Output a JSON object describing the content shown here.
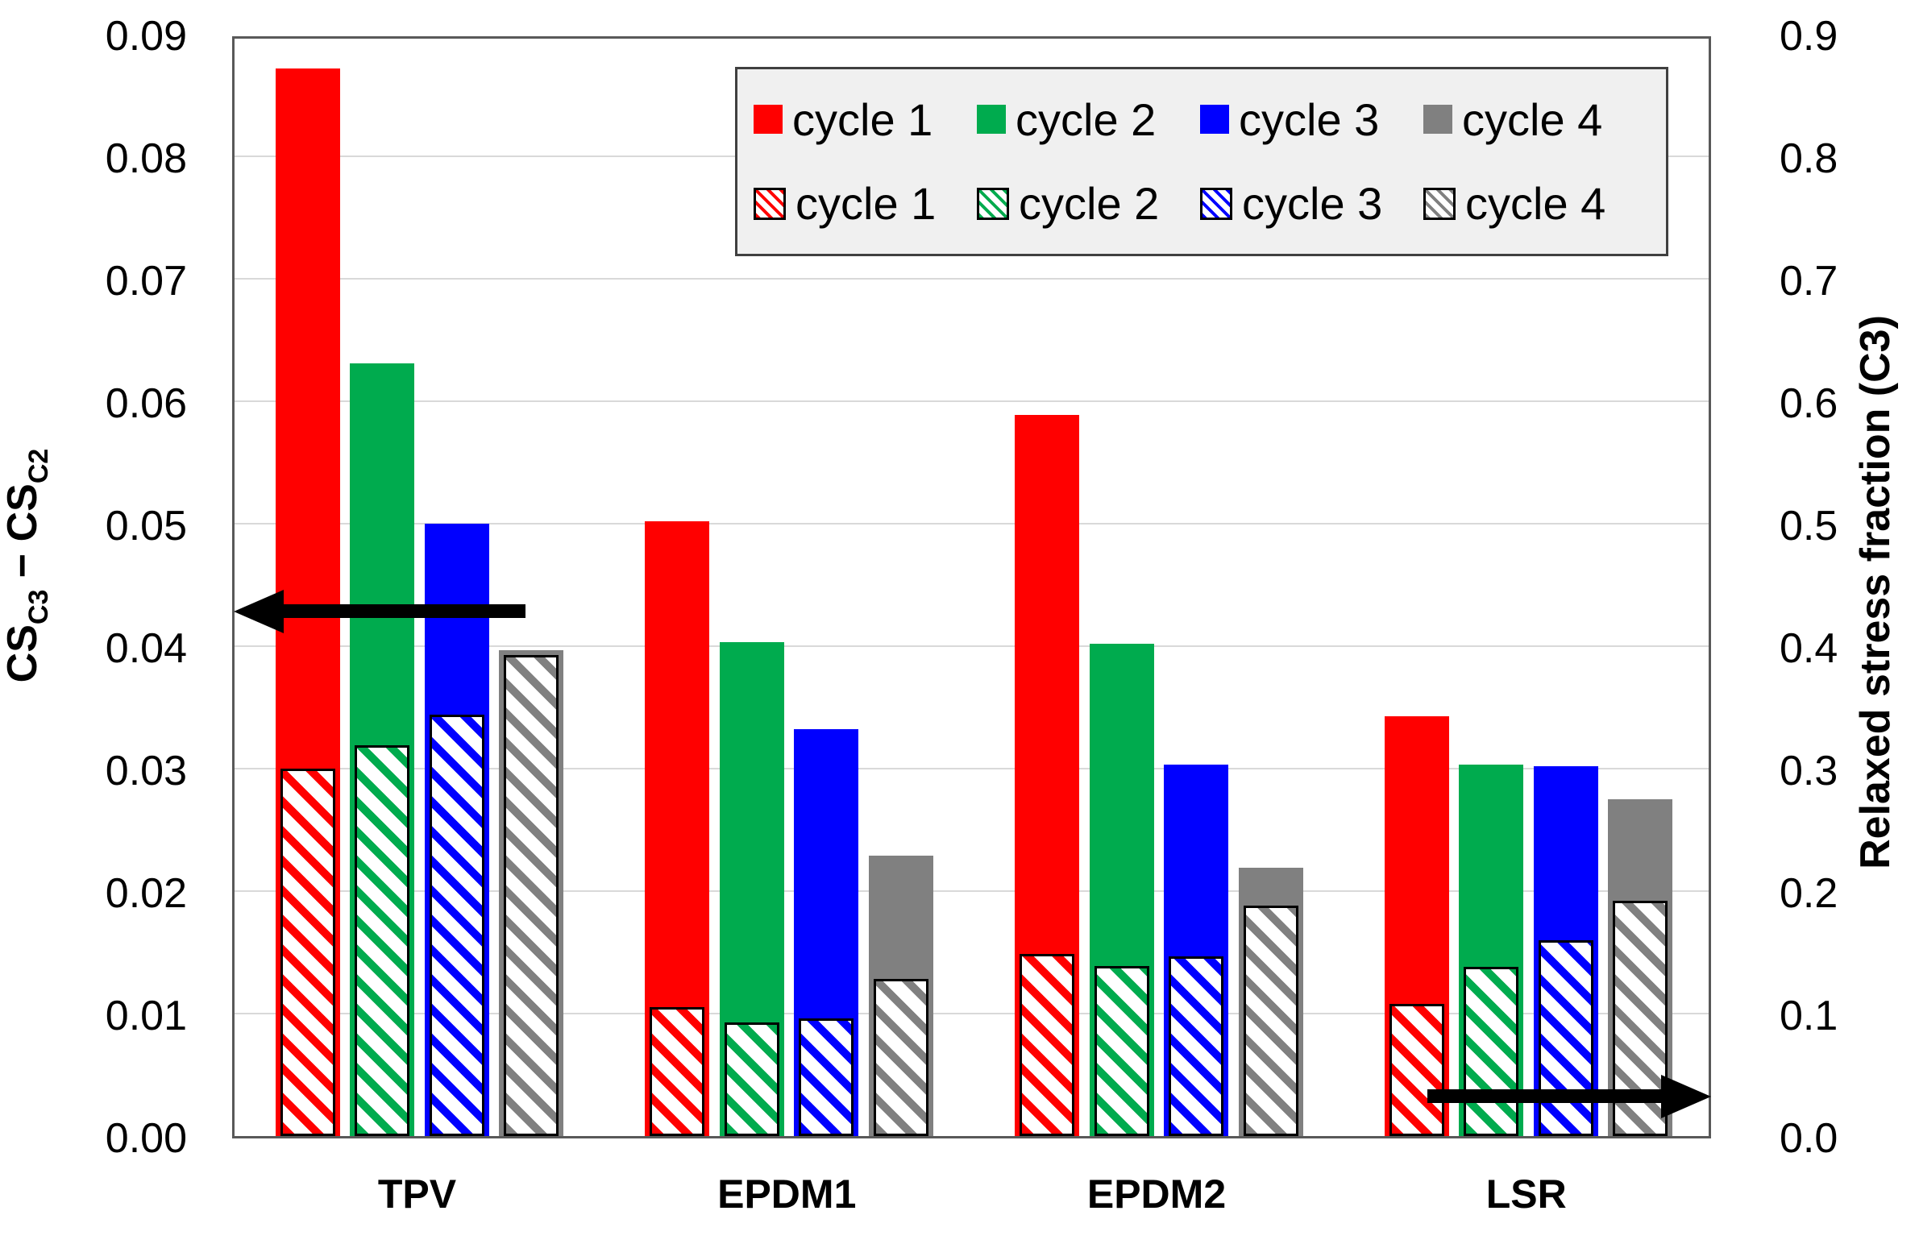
{
  "chart_data": {
    "type": "bar",
    "title": "",
    "categories": [
      "TPV",
      "EPDM1",
      "EPDM2",
      "LSR"
    ],
    "left_axis": {
      "title": "CS_C3 − CS_C2",
      "title_parts": {
        "cs1": "CS",
        "sub1": "C3",
        "minus": " − ",
        "cs2": "CS",
        "sub2": "C2"
      },
      "ticks": [
        "0.00",
        "0.01",
        "0.02",
        "0.03",
        "0.04",
        "0.05",
        "0.06",
        "0.07",
        "0.08",
        "0.09"
      ],
      "range": [
        0,
        0.09
      ]
    },
    "right_axis": {
      "title": "Relaxed stress fraction (C3)",
      "ticks": [
        "0.0",
        "0.1",
        "0.2",
        "0.3",
        "0.4",
        "0.5",
        "0.6",
        "0.7",
        "0.8",
        "0.9"
      ],
      "range": [
        0,
        0.9
      ]
    },
    "grid": true,
    "legend_position": "top-center",
    "series": [
      {
        "name": "cycle 1",
        "style": "solid",
        "axis": "left",
        "color": "#FF0000",
        "values": [
          0.0872,
          0.0502,
          0.0589,
          0.0343
        ]
      },
      {
        "name": "cycle 2",
        "style": "solid",
        "axis": "left",
        "color": "#00AB4E",
        "values": [
          0.0631,
          0.0403,
          0.0402,
          0.0303
        ]
      },
      {
        "name": "cycle 3",
        "style": "solid",
        "axis": "left",
        "color": "#0000FF",
        "values": [
          0.05,
          0.0332,
          0.0303,
          0.0302
        ]
      },
      {
        "name": "cycle 4",
        "style": "solid",
        "axis": "left",
        "color": "#808080",
        "values": [
          0.0397,
          0.0229,
          0.0219,
          0.0275
        ]
      },
      {
        "name": "cycle 1",
        "style": "hatched",
        "axis": "right",
        "color": "#FF0000",
        "values": [
          0.3,
          0.105,
          0.149,
          0.108
        ]
      },
      {
        "name": "cycle 2",
        "style": "hatched",
        "axis": "right",
        "color": "#00AB4E",
        "values": [
          0.319,
          0.093,
          0.139,
          0.138
        ]
      },
      {
        "name": "cycle 3",
        "style": "hatched",
        "axis": "right",
        "color": "#0000FF",
        "values": [
          0.344,
          0.096,
          0.147,
          0.16
        ]
      },
      {
        "name": "cycle 4",
        "style": "hatched",
        "axis": "right",
        "color": "#808080",
        "values": [
          0.393,
          0.128,
          0.188,
          0.192
        ]
      }
    ],
    "annotations": [
      "black arrow pointing left to left axis at ~0.043 (solid bars read on left axis)",
      "black arrow pointing right to right axis at ~0.035 (hatched bars read on right axis)"
    ]
  },
  "legend": {
    "solid_labels": [
      "cycle 1",
      "cycle 2",
      "cycle 3",
      "cycle 4"
    ],
    "hatched_labels": [
      "cycle 1",
      "cycle 2",
      "cycle 3",
      "cycle 4"
    ]
  },
  "colors": {
    "cycle1": "#FF0000",
    "cycle2": "#00AB4E",
    "cycle3": "#0000FF",
    "cycle4": "#808080",
    "gridline": "#d9d9d9",
    "frame": "#595959",
    "legend_bg": "#f0f0f0",
    "arrow": "#000000"
  }
}
